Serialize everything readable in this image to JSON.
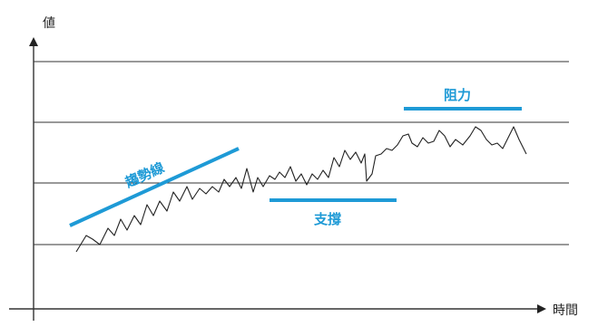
{
  "axes": {
    "y_label": "値",
    "x_label": "時間"
  },
  "annotations": {
    "trend_label": "趨勢線",
    "support_label": "支撐",
    "resistance_label": "阻力"
  },
  "colors": {
    "accent": "#1e9ad6",
    "line": "#222222",
    "grid": "#333333"
  }
}
